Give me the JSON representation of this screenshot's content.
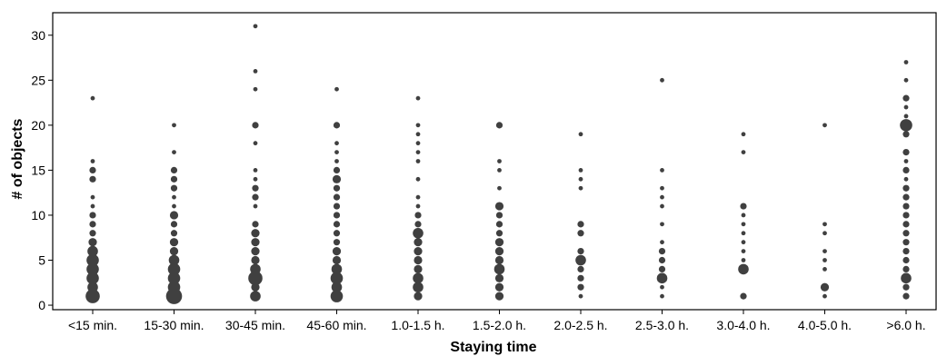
{
  "chart_data": {
    "type": "scatter",
    "xlabel": "Staying time",
    "ylabel": "# of objects",
    "categories": [
      "<15 min.",
      "15-30 min.",
      "30-45 min.",
      "45-60 min.",
      "1.0-1.5 h.",
      "1.5-2.0 h.",
      "2.0-2.5 h.",
      "2.5-3.0 h.",
      "3.0-4.0 h.",
      "4.0-5.0 h.",
      ">6.0 h."
    ],
    "yticks": [
      0,
      5,
      10,
      15,
      20,
      25,
      30
    ],
    "ylim": [
      -0.5,
      32.5
    ],
    "grid": false,
    "marker_color": "#404040",
    "point_size_note": "larger circles = more observations",
    "columns": [
      {
        "category": "<15 min.",
        "points": [
          [
            1,
            6
          ],
          [
            2,
            4
          ],
          [
            3,
            5
          ],
          [
            4,
            5
          ],
          [
            5,
            5
          ],
          [
            6,
            4
          ],
          [
            7,
            3
          ],
          [
            8,
            2
          ],
          [
            9,
            2
          ],
          [
            10,
            2
          ],
          [
            11,
            1
          ],
          [
            12,
            1
          ],
          [
            14,
            2
          ],
          [
            15,
            2
          ],
          [
            16,
            1
          ],
          [
            23,
            1
          ]
        ]
      },
      {
        "category": "15-30 min.",
        "points": [
          [
            1,
            7
          ],
          [
            2,
            5
          ],
          [
            3,
            5
          ],
          [
            4,
            5
          ],
          [
            5,
            4
          ],
          [
            6,
            3
          ],
          [
            7,
            3
          ],
          [
            8,
            2
          ],
          [
            9,
            2
          ],
          [
            10,
            3
          ],
          [
            11,
            1
          ],
          [
            12,
            1
          ],
          [
            13,
            2
          ],
          [
            14,
            2
          ],
          [
            15,
            2
          ],
          [
            17,
            1
          ],
          [
            20,
            1
          ]
        ]
      },
      {
        "category": "30-45 min.",
        "points": [
          [
            1,
            4
          ],
          [
            2,
            3
          ],
          [
            3,
            6
          ],
          [
            4,
            4
          ],
          [
            5,
            3
          ],
          [
            6,
            3
          ],
          [
            7,
            3
          ],
          [
            8,
            3
          ],
          [
            9,
            2
          ],
          [
            11,
            1
          ],
          [
            12,
            2
          ],
          [
            13,
            2
          ],
          [
            14,
            1
          ],
          [
            15,
            1
          ],
          [
            18,
            1
          ],
          [
            20,
            2
          ],
          [
            24,
            1
          ],
          [
            26,
            1
          ],
          [
            31,
            1
          ]
        ]
      },
      {
        "category": "45-60 min.",
        "points": [
          [
            1,
            5
          ],
          [
            2,
            4
          ],
          [
            3,
            5
          ],
          [
            4,
            4
          ],
          [
            5,
            3
          ],
          [
            6,
            3
          ],
          [
            7,
            2
          ],
          [
            8,
            2
          ],
          [
            9,
            2
          ],
          [
            10,
            2
          ],
          [
            11,
            2
          ],
          [
            12,
            2
          ],
          [
            13,
            2
          ],
          [
            14,
            3
          ],
          [
            15,
            2
          ],
          [
            16,
            1
          ],
          [
            17,
            1
          ],
          [
            18,
            1
          ],
          [
            20,
            2
          ],
          [
            24,
            1
          ]
        ]
      },
      {
        "category": "1.0-1.5 h.",
        "points": [
          [
            1,
            3
          ],
          [
            2,
            4
          ],
          [
            3,
            4
          ],
          [
            4,
            3
          ],
          [
            5,
            3
          ],
          [
            6,
            3
          ],
          [
            7,
            3
          ],
          [
            8,
            4
          ],
          [
            9,
            2
          ],
          [
            10,
            2
          ],
          [
            11,
            1
          ],
          [
            12,
            1
          ],
          [
            14,
            1
          ],
          [
            16,
            1
          ],
          [
            17,
            1
          ],
          [
            18,
            1
          ],
          [
            19,
            1
          ],
          [
            20,
            1
          ],
          [
            23,
            1
          ]
        ]
      },
      {
        "category": "1.5-2.0 h.",
        "points": [
          [
            1,
            3
          ],
          [
            2,
            3
          ],
          [
            3,
            3
          ],
          [
            4,
            4
          ],
          [
            5,
            3
          ],
          [
            6,
            3
          ],
          [
            7,
            3
          ],
          [
            8,
            2
          ],
          [
            9,
            2
          ],
          [
            10,
            2
          ],
          [
            11,
            3
          ],
          [
            13,
            1
          ],
          [
            15,
            1
          ],
          [
            16,
            1
          ],
          [
            20,
            2
          ]
        ]
      },
      {
        "category": "2.0-2.5 h.",
        "points": [
          [
            1,
            1
          ],
          [
            2,
            2
          ],
          [
            3,
            2
          ],
          [
            4,
            2
          ],
          [
            5,
            4
          ],
          [
            6,
            2
          ],
          [
            8,
            2
          ],
          [
            9,
            2
          ],
          [
            13,
            1
          ],
          [
            14,
            1
          ],
          [
            15,
            1
          ],
          [
            19,
            1
          ]
        ]
      },
      {
        "category": "2.5-3.0 h.",
        "points": [
          [
            1,
            1
          ],
          [
            2,
            1
          ],
          [
            3,
            4
          ],
          [
            4,
            2
          ],
          [
            5,
            2
          ],
          [
            6,
            2
          ],
          [
            7,
            1
          ],
          [
            9,
            1
          ],
          [
            11,
            1
          ],
          [
            12,
            1
          ],
          [
            13,
            1
          ],
          [
            15,
            1
          ],
          [
            25,
            1
          ]
        ]
      },
      {
        "category": "3.0-4.0 h.",
        "points": [
          [
            1,
            2
          ],
          [
            4,
            4
          ],
          [
            5,
            1
          ],
          [
            6,
            1
          ],
          [
            7,
            1
          ],
          [
            8,
            1
          ],
          [
            9,
            1
          ],
          [
            10,
            1
          ],
          [
            11,
            2
          ],
          [
            17,
            1
          ],
          [
            19,
            1
          ]
        ]
      },
      {
        "category": "4.0-5.0 h.",
        "points": [
          [
            1,
            1
          ],
          [
            2,
            3
          ],
          [
            4,
            1
          ],
          [
            5,
            1
          ],
          [
            6,
            1
          ],
          [
            8,
            1
          ],
          [
            9,
            1
          ],
          [
            20,
            1
          ]
        ]
      },
      {
        "category": ">6.0 h.",
        "points": [
          [
            1,
            2
          ],
          [
            2,
            2
          ],
          [
            3,
            4
          ],
          [
            4,
            2
          ],
          [
            5,
            2
          ],
          [
            6,
            2
          ],
          [
            7,
            2
          ],
          [
            8,
            2
          ],
          [
            9,
            2
          ],
          [
            10,
            2
          ],
          [
            11,
            2
          ],
          [
            12,
            2
          ],
          [
            13,
            2
          ],
          [
            14,
            1
          ],
          [
            15,
            2
          ],
          [
            16,
            1
          ],
          [
            17,
            2
          ],
          [
            19,
            2
          ],
          [
            20,
            5
          ],
          [
            21,
            1
          ],
          [
            22,
            1
          ],
          [
            23,
            2
          ],
          [
            25,
            1
          ],
          [
            27,
            1
          ]
        ]
      }
    ]
  }
}
